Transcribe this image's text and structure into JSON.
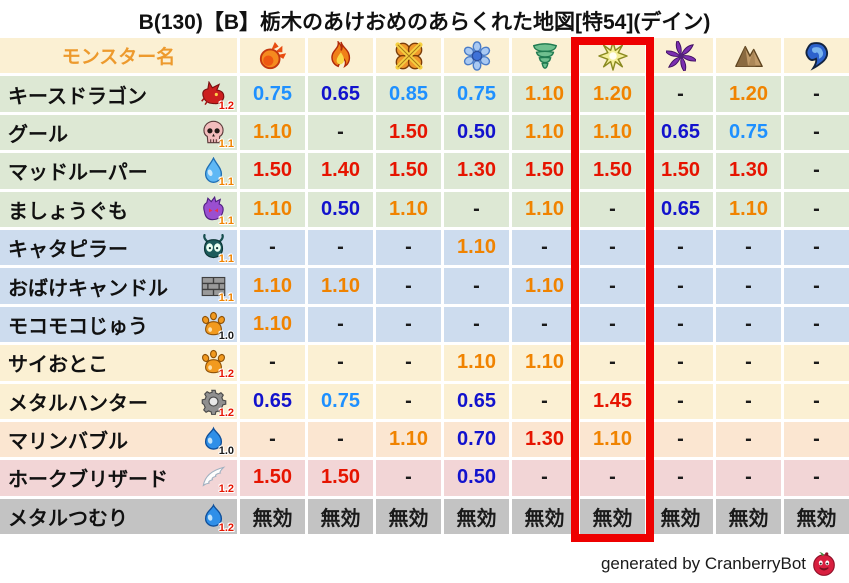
{
  "title": "B(130)【B】栃木のあけおめのあらくれた地図[特54](デイン)",
  "footer": {
    "text": "generated by CranberryBot",
    "icon": "cranberry-icon"
  },
  "colors": {
    "red": "#e61400",
    "orange": "#f08300",
    "light_blue": "#1e90ff",
    "dark_blue": "#1212cd",
    "black": "#1a1a1a",
    "header_text": "#ed9a2d",
    "header_bg": "#fbf0d3",
    "row_green": "#dde8d4",
    "row_blue": "#cddcee",
    "row_cream": "#fbf0d3",
    "row_peach": "#fbe6d1",
    "row_pink": "#f2d5d6",
    "row_gray": "#c3c3c3",
    "highlight_border": "#ee0000",
    "value_thresholds": {
      "red_min": 1.3,
      "orange_min": 1.1,
      "light_blue_min": 0.75
    }
  },
  "chart_data": {
    "type": "table",
    "title": "B(130)【B】栃木のあけおめのあらくれた地図[特54](デイン)",
    "name_column_header": "モンスター名",
    "element_columns": [
      {
        "icon": "fireball-icon"
      },
      {
        "icon": "flame-icon"
      },
      {
        "icon": "bang-icon"
      },
      {
        "icon": "snowflake-icon"
      },
      {
        "icon": "tornado-icon"
      },
      {
        "icon": "lightning-star-icon"
      },
      {
        "icon": "dark-pinwheel-icon"
      },
      {
        "icon": "mountain-icon"
      },
      {
        "icon": "water-wave-icon"
      }
    ],
    "highlighted_column_index": 5,
    "immune_label": "無効",
    "rows": [
      {
        "name": "キースドラゴン",
        "family_icon": "dragon-icon",
        "rank": "1.2",
        "rank_color": "red",
        "row_bg": "green",
        "values": [
          "0.75",
          "0.65",
          "0.85",
          "0.75",
          "1.10",
          "1.20",
          "-",
          "1.20",
          "-"
        ]
      },
      {
        "name": "グール",
        "family_icon": "skull-icon",
        "rank": "1.1",
        "rank_color": "orange",
        "row_bg": "green",
        "values": [
          "1.10",
          "-",
          "1.50",
          "0.50",
          "1.10",
          "1.10",
          "0.65",
          "0.75",
          "-"
        ]
      },
      {
        "name": "マッドルーパー",
        "family_icon": "waterdrop-icon",
        "rank": "1.1",
        "rank_color": "orange",
        "row_bg": "green",
        "values": [
          "1.50",
          "1.40",
          "1.50",
          "1.30",
          "1.50",
          "1.50",
          "1.50",
          "1.30",
          "-"
        ]
      },
      {
        "name": "ましょうぐも",
        "family_icon": "demon-icon",
        "rank": "1.1",
        "rank_color": "orange",
        "row_bg": "green",
        "values": [
          "1.10",
          "0.50",
          "1.10",
          "-",
          "1.10",
          "-",
          "0.65",
          "1.10",
          "-"
        ]
      },
      {
        "name": "キャタピラー",
        "family_icon": "bug-icon",
        "rank": "1.1",
        "rank_color": "orange",
        "row_bg": "blue",
        "values": [
          "-",
          "-",
          "-",
          "1.10",
          "-",
          "-",
          "-",
          "-",
          "-"
        ]
      },
      {
        "name": "おばけキャンドル",
        "family_icon": "brick-icon",
        "rank": "1.1",
        "rank_color": "orange",
        "row_bg": "blue",
        "values": [
          "1.10",
          "1.10",
          "-",
          "-",
          "1.10",
          "-",
          "-",
          "-",
          "-"
        ]
      },
      {
        "name": "モコモコじゅう",
        "family_icon": "paw-icon",
        "rank": "1.0",
        "rank_color": "black",
        "row_bg": "blue",
        "values": [
          "1.10",
          "-",
          "-",
          "-",
          "-",
          "-",
          "-",
          "-",
          "-"
        ]
      },
      {
        "name": "サイおとこ",
        "family_icon": "paw-icon",
        "rank": "1.2",
        "rank_color": "red",
        "row_bg": "cream",
        "values": [
          "-",
          "-",
          "-",
          "1.10",
          "1.10",
          "-",
          "-",
          "-",
          "-"
        ]
      },
      {
        "name": "メタルハンター",
        "family_icon": "gear-icon",
        "rank": "1.2",
        "rank_color": "red",
        "row_bg": "cream",
        "values": [
          "0.65",
          "0.75",
          "-",
          "0.65",
          "-",
          "1.45",
          "-",
          "-",
          "-"
        ]
      },
      {
        "name": "マリンバブル",
        "family_icon": "slime-icon",
        "rank": "1.0",
        "rank_color": "black",
        "row_bg": "peach",
        "values": [
          "-",
          "-",
          "1.10",
          "0.70",
          "1.30",
          "1.10",
          "-",
          "-",
          "-"
        ]
      },
      {
        "name": "ホークブリザード",
        "family_icon": "wing-icon",
        "rank": "1.2",
        "rank_color": "red",
        "row_bg": "pink",
        "values": [
          "1.50",
          "1.50",
          "-",
          "0.50",
          "-",
          "-",
          "-",
          "-",
          "-"
        ]
      },
      {
        "name": "メタルつむり",
        "family_icon": "slime-icon",
        "rank": "1.2",
        "rank_color": "red",
        "row_bg": "gray",
        "values": [
          "無効",
          "無効",
          "無効",
          "無効",
          "無効",
          "無効",
          "無効",
          "無効",
          "無効"
        ]
      }
    ]
  }
}
